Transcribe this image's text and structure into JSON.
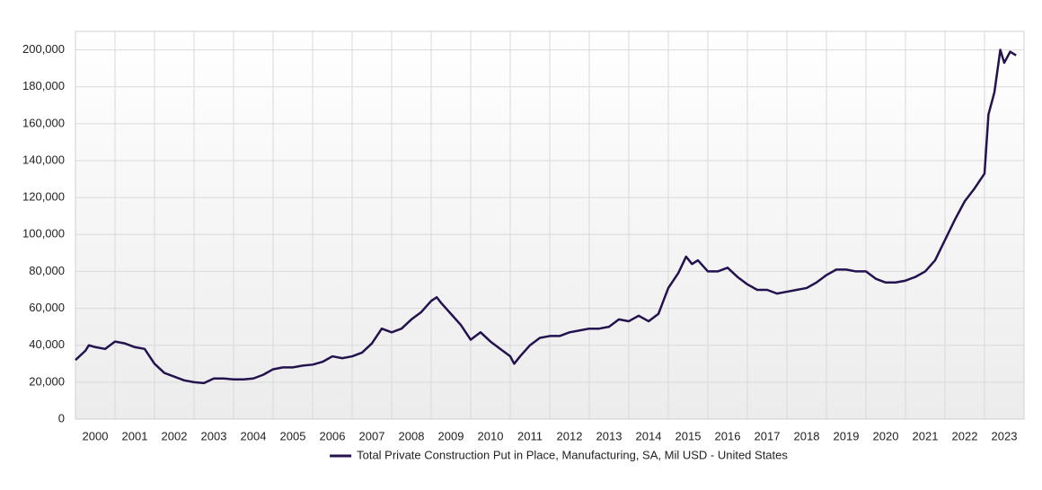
{
  "chart_data": {
    "type": "line",
    "x": [
      2000.0,
      2000.25,
      2000.34,
      2000.5,
      2000.75,
      2001.0,
      2001.25,
      2001.5,
      2001.75,
      2002.0,
      2002.25,
      2002.5,
      2002.75,
      2003.0,
      2003.25,
      2003.5,
      2003.75,
      2004.0,
      2004.25,
      2004.5,
      2004.75,
      2005.0,
      2005.25,
      2005.5,
      2005.75,
      2006.0,
      2006.25,
      2006.5,
      2006.75,
      2007.0,
      2007.25,
      2007.5,
      2007.75,
      2008.0,
      2008.25,
      2008.5,
      2008.75,
      2009.0,
      2009.14,
      2009.25,
      2009.5,
      2009.75,
      2010.0,
      2010.25,
      2010.5,
      2010.75,
      2011.0,
      2011.1,
      2011.25,
      2011.5,
      2011.75,
      2012.0,
      2012.25,
      2012.5,
      2012.75,
      2013.0,
      2013.25,
      2013.5,
      2013.75,
      2014.0,
      2014.25,
      2014.5,
      2014.75,
      2015.0,
      2015.25,
      2015.45,
      2015.6,
      2015.75,
      2016.0,
      2016.25,
      2016.5,
      2016.75,
      2017.0,
      2017.25,
      2017.5,
      2017.75,
      2018.0,
      2018.25,
      2018.5,
      2018.75,
      2019.0,
      2019.25,
      2019.5,
      2019.75,
      2020.0,
      2020.25,
      2020.5,
      2020.75,
      2021.0,
      2021.25,
      2021.5,
      2021.75,
      2022.0,
      2022.25,
      2022.5,
      2022.75,
      2023.0,
      2023.1,
      2023.25,
      2023.4,
      2023.5,
      2023.65,
      2023.8
    ],
    "series": [
      {
        "name": "Total Private Construction Put in Place, Manufacturing, SA, Mil USD - United States",
        "color": "#24124f",
        "values": [
          32000,
          37000,
          40000,
          39000,
          38000,
          42000,
          41000,
          39000,
          38000,
          30000,
          25000,
          23000,
          21000,
          20000,
          19500,
          22000,
          22000,
          21500,
          21500,
          22000,
          24000,
          27000,
          28000,
          28000,
          29000,
          29500,
          31000,
          34000,
          33000,
          34000,
          36000,
          41000,
          49000,
          47000,
          49000,
          54000,
          58000,
          64000,
          66000,
          63000,
          57000,
          51000,
          43000,
          47000,
          42000,
          38000,
          34000,
          30000,
          34000,
          40000,
          44000,
          45000,
          45000,
          47000,
          48000,
          49000,
          49000,
          50000,
          54000,
          53000,
          56000,
          53000,
          57000,
          71000,
          79000,
          88000,
          84000,
          86000,
          80000,
          80000,
          82000,
          77000,
          73000,
          70000,
          70000,
          68000,
          69000,
          70000,
          71000,
          74000,
          78000,
          81000,
          81000,
          80000,
          80000,
          76000,
          74000,
          74000,
          75000,
          77000,
          80000,
          86000,
          97000,
          108000,
          118000,
          125000,
          133000,
          165000,
          177000,
          200000,
          193000,
          199000,
          197000
        ]
      }
    ],
    "xlim": [
      2000,
      2024
    ],
    "xticks": [
      2000,
      2001,
      2002,
      2003,
      2004,
      2005,
      2006,
      2007,
      2008,
      2009,
      2010,
      2011,
      2012,
      2013,
      2014,
      2015,
      2016,
      2017,
      2018,
      2019,
      2020,
      2021,
      2022,
      2023
    ],
    "ylim": [
      0,
      210000
    ],
    "yticks": [
      0,
      {
        "value": 20000,
        "label": "20,000"
      },
      {
        "value": 40000,
        "label": "40,000"
      },
      {
        "value": 60000,
        "label": "60,000"
      },
      {
        "value": 80000,
        "label": "80,000"
      },
      {
        "value": 100000,
        "label": "100,000"
      },
      {
        "value": 120000,
        "label": "120,000"
      },
      {
        "value": 140000,
        "label": "140,000"
      },
      {
        "value": 160000,
        "label": "160,000"
      },
      {
        "value": 180000,
        "label": "180,000"
      },
      {
        "value": 200000,
        "label": "200,000"
      }
    ],
    "grid": true,
    "legend": "bottom"
  }
}
